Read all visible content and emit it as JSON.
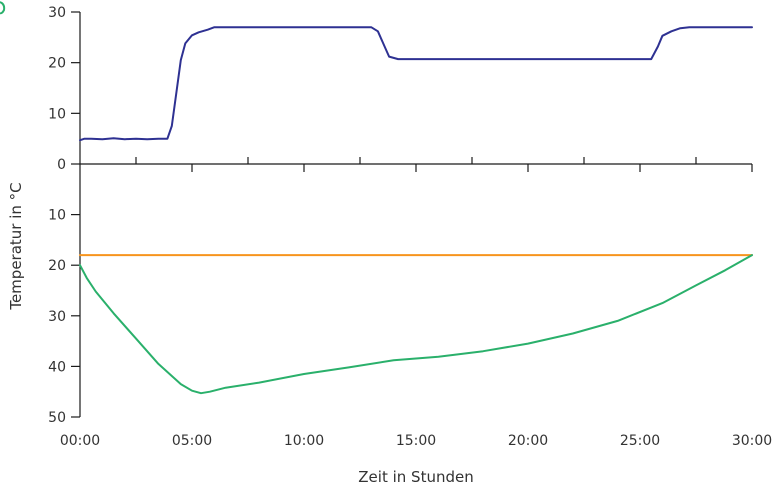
{
  "chart_data": {
    "type": "line",
    "xlabel": "Zeit in Stunden",
    "ylabel": "Temperatur in °C",
    "x_tick_labels": [
      "00:00",
      "05:00",
      "10:00",
      "15:00",
      "20:00",
      "25:00",
      "30:00"
    ],
    "x_ticks_hours": [
      0,
      5,
      10,
      15,
      20,
      25,
      30
    ],
    "xlim": [
      0,
      30
    ],
    "top_panel": {
      "ylim": [
        0,
        30
      ],
      "y_ticks": [
        0,
        10,
        20,
        30
      ],
      "y_tick_labels": [
        "0",
        "10",
        "20",
        "30"
      ]
    },
    "bottom_panel": {
      "ylim": [
        0,
        50
      ],
      "y_ticks": [
        10,
        20,
        30,
        40,
        50
      ],
      "y_tick_labels": [
        "10",
        "20",
        "30",
        "40",
        "50"
      ],
      "inverted": true
    },
    "series": [
      {
        "panel": "top",
        "color": "#2e3192",
        "x": [
          0,
          0.2,
          0.5,
          1.0,
          1.5,
          2.0,
          2.5,
          3.0,
          3.5,
          3.9,
          4.1,
          4.3,
          4.5,
          4.7,
          5.0,
          5.3,
          5.7,
          6.0,
          10,
          13.0,
          13.3,
          13.6,
          13.8,
          14.2,
          15,
          20,
          25.5,
          25.8,
          26.0,
          26.4,
          26.8,
          27.2,
          30
        ],
        "y": [
          4.7,
          5.0,
          5.0,
          4.9,
          5.1,
          4.9,
          5.0,
          4.9,
          5.0,
          5.0,
          7.5,
          14,
          20.5,
          23.8,
          25.4,
          26.0,
          26.5,
          27,
          27,
          27,
          26.2,
          23.2,
          21.2,
          20.7,
          20.7,
          20.7,
          20.7,
          23.2,
          25.3,
          26.2,
          26.8,
          27,
          27
        ]
      },
      {
        "panel": "bottom",
        "color": "#f7941d",
        "x": [
          0,
          30
        ],
        "y": [
          18,
          18
        ]
      },
      {
        "panel": "bottom",
        "color": "#2ab06b",
        "x": [
          0,
          0.3,
          0.7,
          1.5,
          2.5,
          3.5,
          4.5,
          5.0,
          5.4,
          5.8,
          6.5,
          8,
          10,
          12,
          14,
          16,
          18,
          20,
          22,
          24,
          26,
          27.5,
          28.8,
          30
        ],
        "y": [
          20,
          22.5,
          25.2,
          29.5,
          34.5,
          39.5,
          43.5,
          44.8,
          45.3,
          45.0,
          44.2,
          43.2,
          41.5,
          40.2,
          38.8,
          38.1,
          37.0,
          35.5,
          33.5,
          31.0,
          27.5,
          24.0,
          21.0,
          18.0
        ]
      }
    ]
  }
}
